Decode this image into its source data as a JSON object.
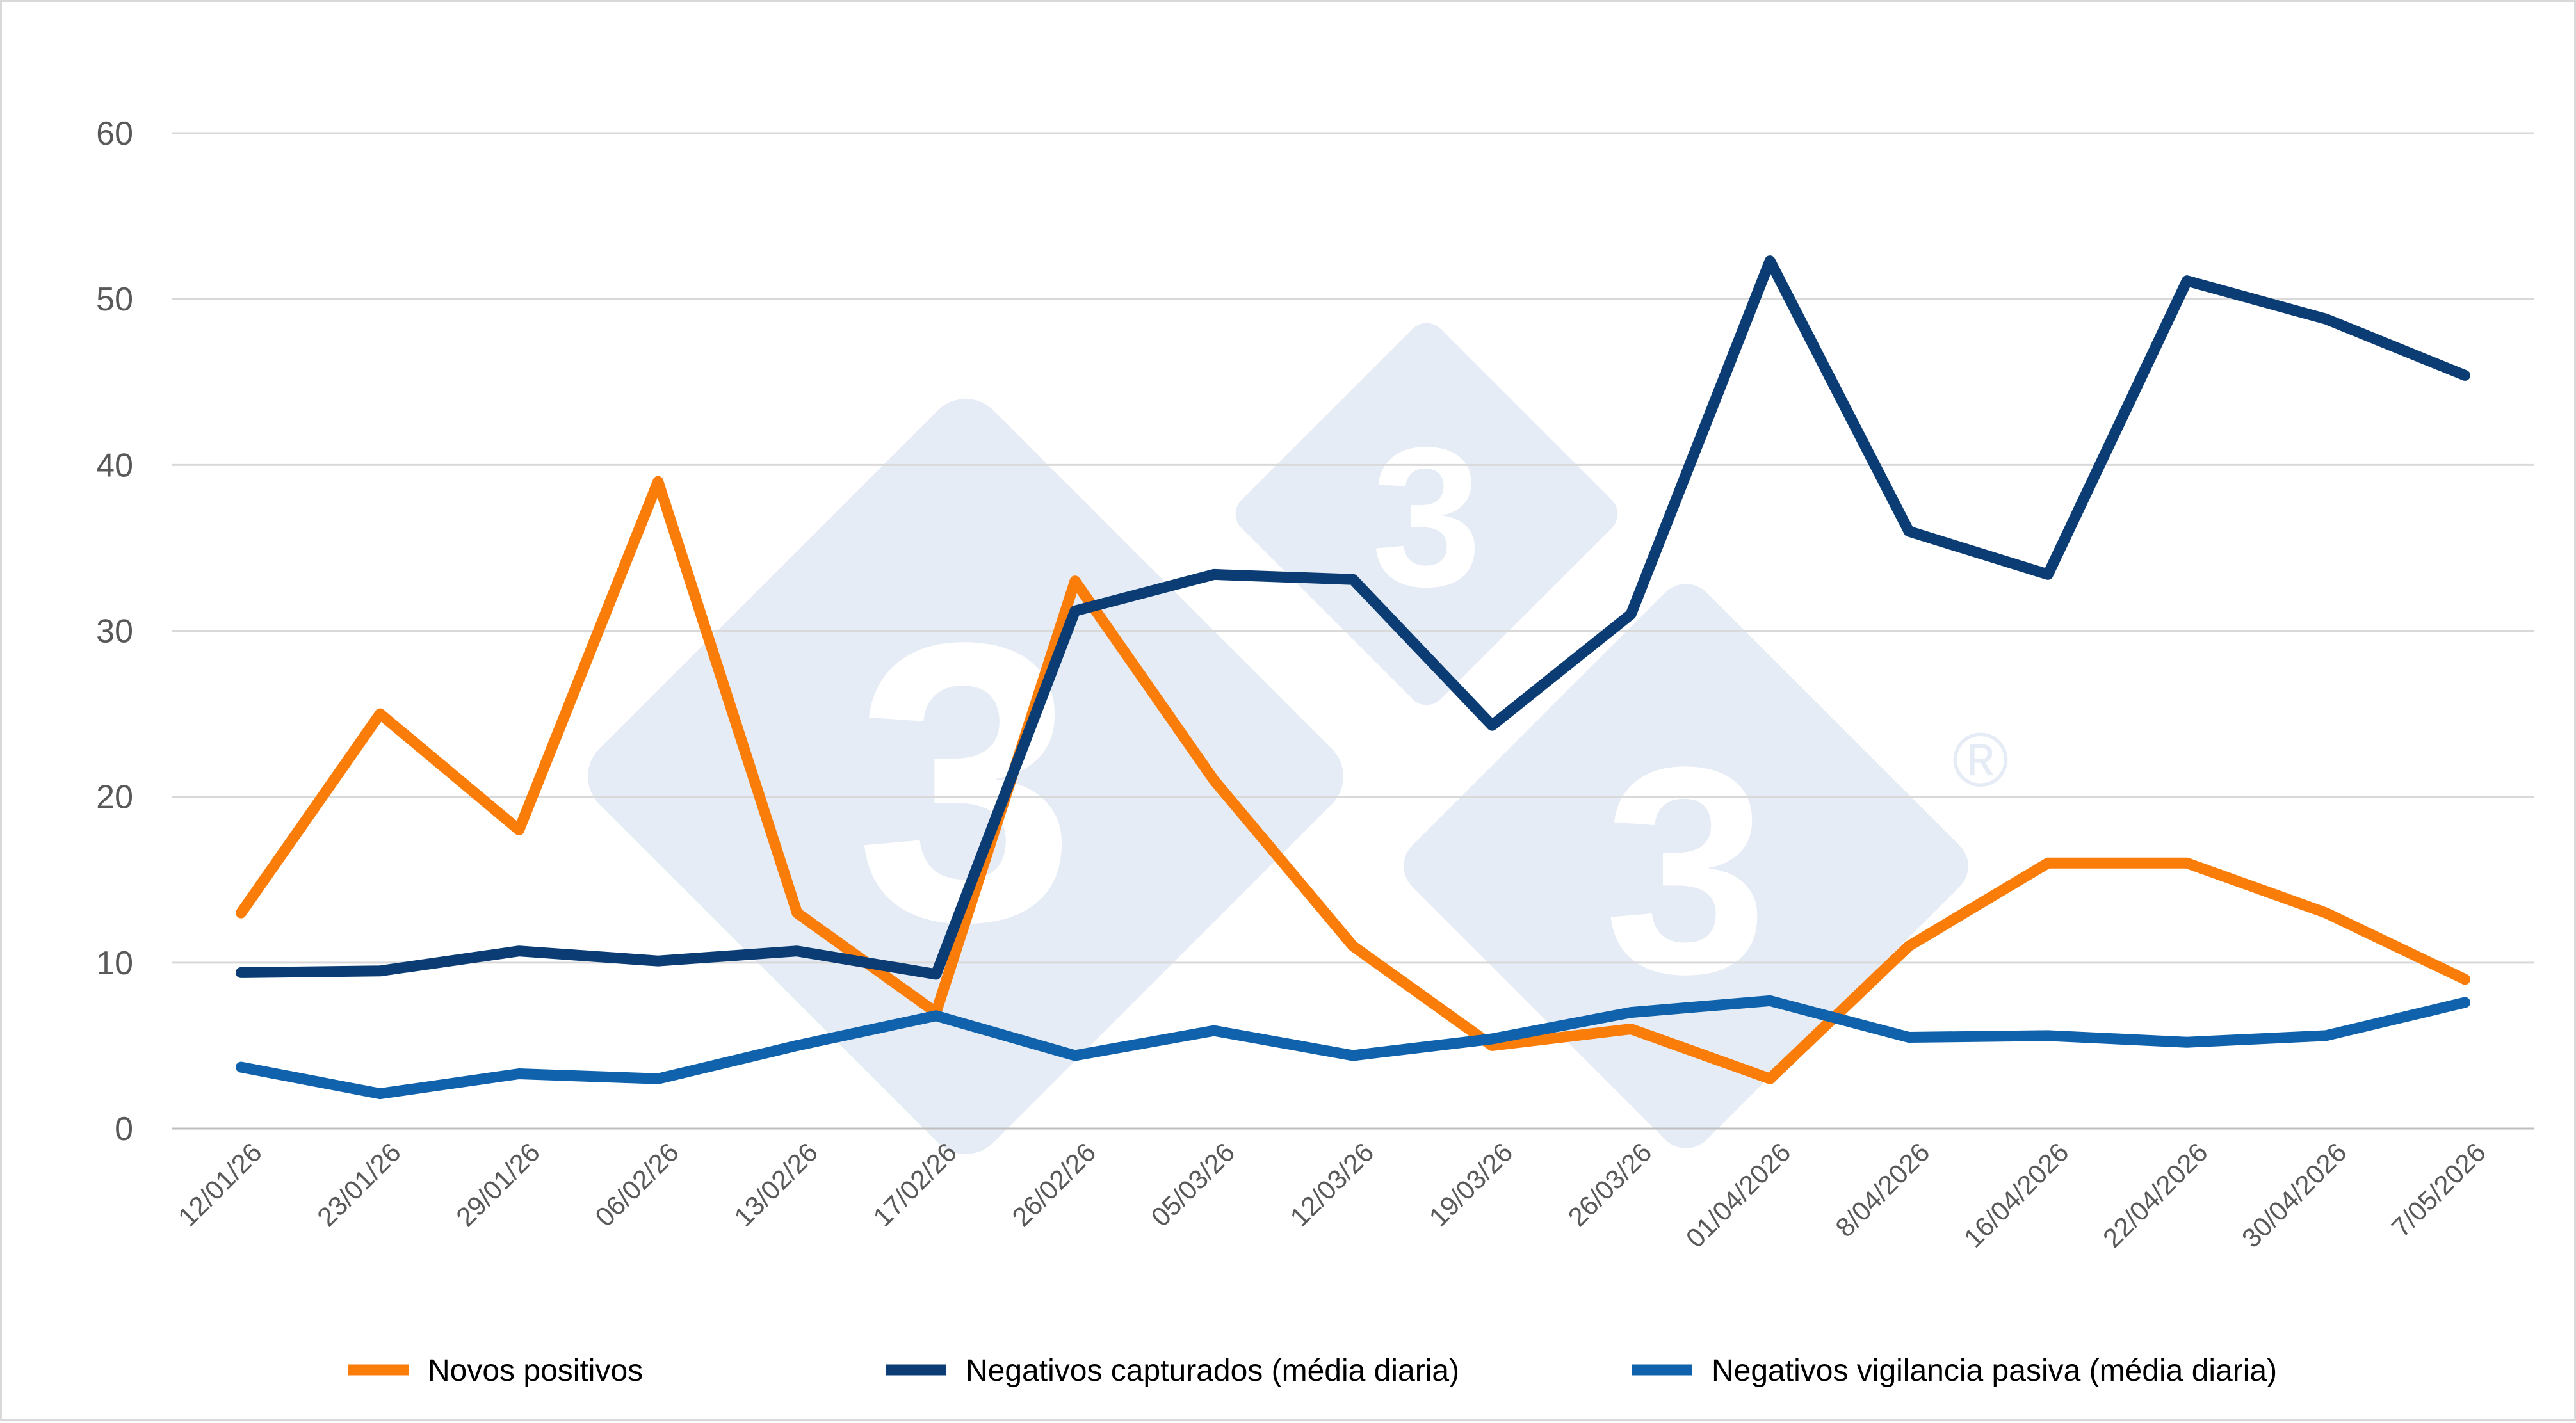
{
  "chart_data": {
    "type": "line",
    "title": "",
    "xlabel": "",
    "ylabel": "",
    "ylim": [
      0,
      60
    ],
    "yticks": [
      0,
      10,
      20,
      30,
      40,
      50,
      60
    ],
    "grid": "horizontal",
    "legend_position": "bottom",
    "categories": [
      "12/01/26",
      "23/01/26",
      "29/01/26",
      "06/02/26",
      "13/02/26",
      "17/02/26",
      "26/02/26",
      "05/03/26",
      "12/03/26",
      "19/03/26",
      "26/03/26",
      "01/04/2026",
      "8/04/2026",
      "16/04/2026",
      "22/04/2026",
      "30/04/2026",
      "7/05/2026"
    ],
    "series": [
      {
        "name": "Novos positivos",
        "color": "#fa7d0a",
        "values": [
          13,
          25,
          18,
          39,
          13,
          7,
          33,
          21,
          11,
          5,
          6,
          3,
          11,
          16,
          16,
          13,
          9
        ]
      },
      {
        "name": "Negativos capturados (média diaria)",
        "color": "#0b3d74",
        "values": [
          9.4,
          9.5,
          10.7,
          10.1,
          10.7,
          9.3,
          31.2,
          33.4,
          33.1,
          24.3,
          31,
          52.3,
          36,
          33.4,
          51.1,
          48.8,
          45.4
        ]
      },
      {
        "name": "Negativos vigilancia pasiva (média diaria)",
        "color": "#0f62ab",
        "values": [
          3.7,
          2.1,
          3.3,
          3,
          5,
          6.8,
          4.4,
          5.9,
          4.4,
          5.4,
          7,
          7.7,
          5.5,
          5.6,
          5.2,
          5.6,
          7.6
        ]
      }
    ]
  },
  "watermark": {
    "color": "#e6ecf5",
    "glyph": "3",
    "registered": "®"
  }
}
